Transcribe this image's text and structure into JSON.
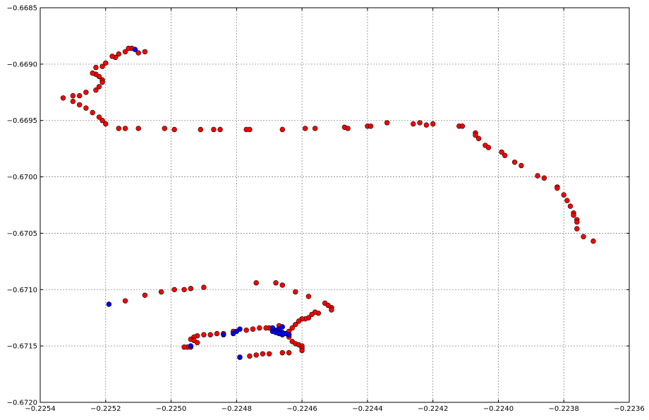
{
  "chart_data": {
    "type": "scatter",
    "title": "",
    "xlabel": "",
    "ylabel": "",
    "xlim": [
      -0.2254,
      -0.2236
    ],
    "ylim": [
      -0.672,
      -0.6685
    ],
    "grid": true,
    "x_ticks": [
      -0.2254,
      -0.2252,
      -0.225,
      -0.2248,
      -0.2246,
      -0.2244,
      -0.2242,
      -0.224,
      -0.2238,
      -0.2236
    ],
    "x_tick_labels": [
      "−0.2254",
      "−0.2252",
      "−0.2250",
      "−0.2248",
      "−0.2246",
      "−0.2244",
      "−0.2242",
      "−0.2240",
      "−0.2238",
      "−0.2236"
    ],
    "y_ticks": [
      -0.6685,
      -0.669,
      -0.6695,
      -0.67,
      -0.6705,
      -0.671,
      -0.6715,
      -0.672
    ],
    "y_tick_labels": [
      "−0.6685",
      "−0.6690",
      "−0.6695",
      "−0.6700",
      "−0.6705",
      "−0.6710",
      "−0.6715",
      "−0.6720"
    ],
    "series": [
      {
        "color": "#ff0000",
        "points": [
          [
            -0.22508,
            -0.66889
          ],
          [
            -0.2251,
            -0.6689
          ],
          [
            -0.22512,
            -0.66886
          ],
          [
            -0.22513,
            -0.66886
          ],
          [
            -0.22514,
            -0.66889
          ],
          [
            -0.22516,
            -0.66891
          ],
          [
            -0.22517,
            -0.66894
          ],
          [
            -0.22518,
            -0.66893
          ],
          [
            -0.2252,
            -0.66899
          ],
          [
            -0.22521,
            -0.66902
          ],
          [
            -0.22523,
            -0.66903
          ],
          [
            -0.22523,
            -0.66909
          ],
          [
            -0.22522,
            -0.66911
          ],
          [
            -0.22521,
            -0.66914
          ],
          [
            -0.22521,
            -0.66916
          ],
          [
            -0.22522,
            -0.6692
          ],
          [
            -0.22523,
            -0.66923
          ],
          [
            -0.22524,
            -0.66908
          ],
          [
            -0.22526,
            -0.66925
          ],
          [
            -0.22528,
            -0.66928
          ],
          [
            -0.2253,
            -0.66928
          ],
          [
            -0.22533,
            -0.6693
          ],
          [
            -0.2253,
            -0.66933
          ],
          [
            -0.22528,
            -0.66936
          ],
          [
            -0.22526,
            -0.66939
          ],
          [
            -0.22524,
            -0.66943
          ],
          [
            -0.22522,
            -0.66947
          ],
          [
            -0.22521,
            -0.6695
          ],
          [
            -0.2252,
            -0.66953
          ],
          [
            -0.22516,
            -0.66957
          ],
          [
            -0.22514,
            -0.66957
          ],
          [
            -0.2251,
            -0.66957
          ],
          [
            -0.22502,
            -0.66957
          ],
          [
            -0.22499,
            -0.66958
          ],
          [
            -0.22491,
            -0.66958
          ],
          [
            -0.22487,
            -0.66958
          ],
          [
            -0.22485,
            -0.66958
          ],
          [
            -0.22477,
            -0.66958
          ],
          [
            -0.22476,
            -0.66958
          ],
          [
            -0.22466,
            -0.66958
          ],
          [
            -0.22459,
            -0.66957
          ],
          [
            -0.22456,
            -0.66957
          ],
          [
            -0.22447,
            -0.66956
          ],
          [
            -0.22446,
            -0.66957
          ],
          [
            -0.2244,
            -0.66955
          ],
          [
            -0.22439,
            -0.66955
          ],
          [
            -0.22434,
            -0.66952
          ],
          [
            -0.22426,
            -0.66953
          ],
          [
            -0.22424,
            -0.66952
          ],
          [
            -0.22422,
            -0.66954
          ],
          [
            -0.2242,
            -0.66953
          ],
          [
            -0.22412,
            -0.66955
          ],
          [
            -0.22411,
            -0.66955
          ],
          [
            -0.22407,
            -0.66961
          ],
          [
            -0.22407,
            -0.66963
          ],
          [
            -0.22406,
            -0.66966
          ],
          [
            -0.22404,
            -0.66972
          ],
          [
            -0.22403,
            -0.66974
          ],
          [
            -0.22399,
            -0.66978
          ],
          [
            -0.22398,
            -0.66981
          ],
          [
            -0.22395,
            -0.66987
          ],
          [
            -0.22393,
            -0.6699
          ],
          [
            -0.22388,
            -0.66999
          ],
          [
            -0.22386,
            -0.67001
          ],
          [
            -0.22382,
            -0.67009
          ],
          [
            -0.22382,
            -0.6701
          ],
          [
            -0.2238,
            -0.67016
          ],
          [
            -0.22379,
            -0.67021
          ],
          [
            -0.22378,
            -0.67026
          ],
          [
            -0.22377,
            -0.67032
          ],
          [
            -0.22377,
            -0.67034
          ],
          [
            -0.22376,
            -0.67038
          ],
          [
            -0.22376,
            -0.6704
          ],
          [
            -0.22376,
            -0.67046
          ],
          [
            -0.22374,
            -0.67053
          ],
          [
            -0.22371,
            -0.67057
          ],
          [
            -0.22514,
            -0.6711
          ],
          [
            -0.22508,
            -0.67105
          ],
          [
            -0.22503,
            -0.67102
          ],
          [
            -0.22499,
            -0.671
          ],
          [
            -0.22496,
            -0.671
          ],
          [
            -0.22494,
            -0.67099
          ],
          [
            -0.2249,
            -0.67098
          ],
          [
            -0.22474,
            -0.67094
          ],
          [
            -0.22468,
            -0.67094
          ],
          [
            -0.22466,
            -0.67096
          ],
          [
            -0.22462,
            -0.67102
          ],
          [
            -0.22458,
            -0.67106
          ],
          [
            -0.22453,
            -0.67112
          ],
          [
            -0.22452,
            -0.67114
          ],
          [
            -0.22451,
            -0.67116
          ],
          [
            -0.22451,
            -0.67118
          ],
          [
            -0.22455,
            -0.67121
          ],
          [
            -0.22456,
            -0.6712
          ],
          [
            -0.22457,
            -0.67122
          ],
          [
            -0.22458,
            -0.67125
          ],
          [
            -0.22459,
            -0.67126
          ],
          [
            -0.2246,
            -0.67126
          ],
          [
            -0.22461,
            -0.67128
          ],
          [
            -0.22462,
            -0.67131
          ],
          [
            -0.22463,
            -0.67134
          ],
          [
            -0.22464,
            -0.67137
          ],
          [
            -0.22464,
            -0.6714
          ],
          [
            -0.22464,
            -0.67142
          ],
          [
            -0.22463,
            -0.67146
          ],
          [
            -0.22462,
            -0.67148
          ],
          [
            -0.22461,
            -0.67149
          ],
          [
            -0.2246,
            -0.6715
          ],
          [
            -0.2246,
            -0.67152
          ],
          [
            -0.2246,
            -0.67154
          ],
          [
            -0.22464,
            -0.67156
          ],
          [
            -0.22466,
            -0.67156
          ],
          [
            -0.2247,
            -0.67157
          ],
          [
            -0.22472,
            -0.67157
          ],
          [
            -0.22474,
            -0.67158
          ],
          [
            -0.22476,
            -0.67159
          ],
          [
            -0.22479,
            -0.6716
          ],
          [
            -0.22467,
            -0.67132
          ],
          [
            -0.22469,
            -0.67134
          ],
          [
            -0.2247,
            -0.67134
          ],
          [
            -0.22471,
            -0.67134
          ],
          [
            -0.22473,
            -0.67134
          ],
          [
            -0.22475,
            -0.67135
          ],
          [
            -0.22477,
            -0.67136
          ],
          [
            -0.22481,
            -0.67137
          ],
          [
            -0.22484,
            -0.67139
          ],
          [
            -0.22486,
            -0.67139
          ],
          [
            -0.22488,
            -0.6714
          ],
          [
            -0.2249,
            -0.6714
          ],
          [
            -0.22492,
            -0.67141
          ],
          [
            -0.22493,
            -0.67142
          ],
          [
            -0.22494,
            -0.67144
          ],
          [
            -0.22493,
            -0.67145
          ],
          [
            -0.22492,
            -0.67147
          ],
          [
            -0.22494,
            -0.67151
          ],
          [
            -0.22495,
            -0.67151
          ],
          [
            -0.22496,
            -0.67151
          ]
        ]
      },
      {
        "color": "#0000ff",
        "points": [
          [
            -0.22511,
            -0.66887
          ],
          [
            -0.22519,
            -0.67113
          ],
          [
            -0.22466,
            -0.67133
          ],
          [
            -0.22467,
            -0.67135
          ],
          [
            -0.22466,
            -0.67138
          ],
          [
            -0.22466,
            -0.6714
          ],
          [
            -0.22467,
            -0.67137
          ],
          [
            -0.22468,
            -0.67136
          ],
          [
            -0.22469,
            -0.67137
          ],
          [
            -0.22469,
            -0.67134
          ],
          [
            -0.22468,
            -0.67138
          ],
          [
            -0.22467,
            -0.67139
          ],
          [
            -0.22465,
            -0.67139
          ],
          [
            -0.22464,
            -0.6714
          ],
          [
            -0.22479,
            -0.67135
          ],
          [
            -0.2248,
            -0.67137
          ],
          [
            -0.22481,
            -0.67139
          ],
          [
            -0.22484,
            -0.6714
          ],
          [
            -0.22494,
            -0.6715
          ],
          [
            -0.22479,
            -0.6716
          ]
        ]
      }
    ]
  }
}
